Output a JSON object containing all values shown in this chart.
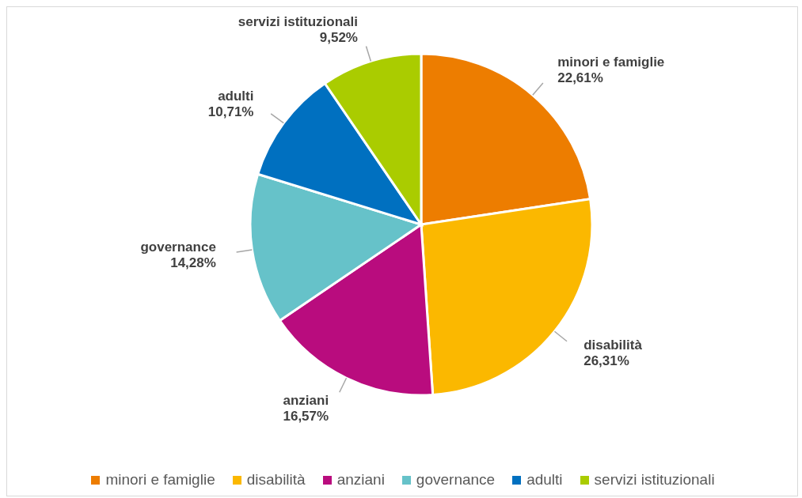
{
  "chart_data": {
    "type": "pie",
    "categories": [
      "minori e famiglie",
      "disabilità",
      "anziani",
      "governance",
      "adulti",
      "servizi istituzionali"
    ],
    "values": [
      22.61,
      26.31,
      16.57,
      14.28,
      10.71,
      9.52
    ],
    "value_labels": [
      "22,61%",
      "26,31%",
      "16,57%",
      "14,28%",
      "10,71%",
      "9,52%"
    ],
    "colors": [
      "#ed7d00",
      "#fbb800",
      "#b90c7e",
      "#66c2c9",
      "#0070c0",
      "#aacc00"
    ],
    "legend": "bottom"
  }
}
